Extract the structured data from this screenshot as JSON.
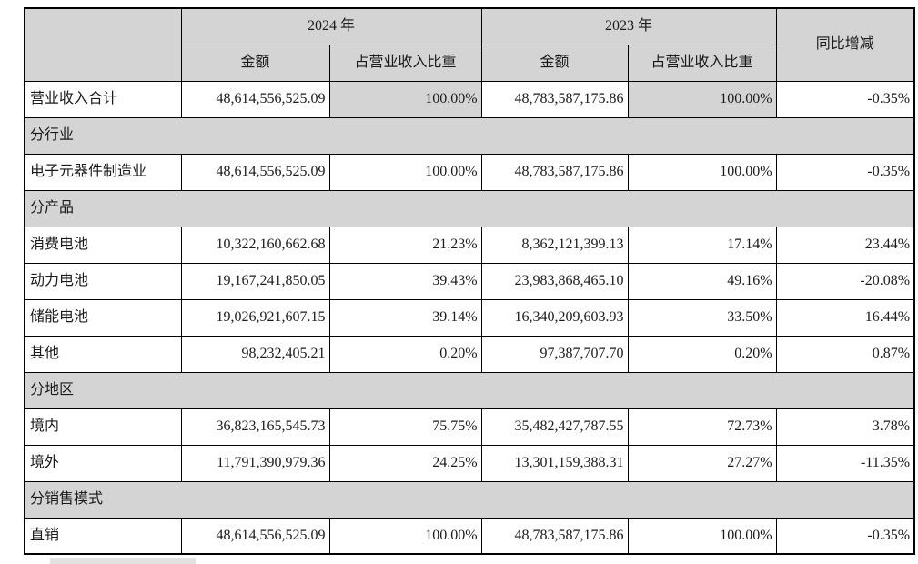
{
  "table": {
    "header": {
      "year_2024": "2024 年",
      "year_2023": "2023 年",
      "amount": "金额",
      "share": "占营业收入比重",
      "yoy": "同比增减"
    },
    "rows": [
      {
        "type": "data",
        "label": "营业收入合计",
        "a2024": "48,614,556,525.09",
        "s2024": "100.00%",
        "a2023": "48,783,587,175.86",
        "s2023": "100.00%",
        "yoy": "-0.35%",
        "shade_share": true
      },
      {
        "type": "section",
        "label": "分行业"
      },
      {
        "type": "data",
        "label": "电子元器件制造业",
        "a2024": "48,614,556,525.09",
        "s2024": "100.00%",
        "a2023": "48,783,587,175.86",
        "s2023": "100.00%",
        "yoy": "-0.35%",
        "shade_share": false
      },
      {
        "type": "section",
        "label": "分产品"
      },
      {
        "type": "data",
        "label": "消费电池",
        "a2024": "10,322,160,662.68",
        "s2024": "21.23%",
        "a2023": "8,362,121,399.13",
        "s2023": "17.14%",
        "yoy": "23.44%",
        "shade_share": false
      },
      {
        "type": "data",
        "label": "动力电池",
        "a2024": "19,167,241,850.05",
        "s2024": "39.43%",
        "a2023": "23,983,868,465.10",
        "s2023": "49.16%",
        "yoy": "-20.08%",
        "shade_share": false
      },
      {
        "type": "data",
        "label": "储能电池",
        "a2024": "19,026,921,607.15",
        "s2024": "39.14%",
        "a2023": "16,340,209,603.93",
        "s2023": "33.50%",
        "yoy": "16.44%",
        "shade_share": false
      },
      {
        "type": "data",
        "label": "其他",
        "a2024": "98,232,405.21",
        "s2024": "0.20%",
        "a2023": "97,387,707.70",
        "s2023": "0.20%",
        "yoy": "0.87%",
        "shade_share": false
      },
      {
        "type": "section",
        "label": "分地区"
      },
      {
        "type": "data",
        "label": "境内",
        "a2024": "36,823,165,545.73",
        "s2024": "75.75%",
        "a2023": "35,482,427,787.55",
        "s2023": "72.73%",
        "yoy": "3.78%",
        "shade_share": false
      },
      {
        "type": "data",
        "label": "境外",
        "a2024": "11,791,390,979.36",
        "s2024": "24.25%",
        "a2023": "13,301,159,388.31",
        "s2023": "27.27%",
        "yoy": "-11.35%",
        "shade_share": false
      },
      {
        "type": "section",
        "label": "分销售模式"
      },
      {
        "type": "data",
        "label": "直销",
        "a2024": "48,614,556,525.09",
        "s2024": "100.00%",
        "a2023": "48,783,587,175.86",
        "s2023": "100.00%",
        "yoy": "-0.35%",
        "shade_share": false
      }
    ],
    "colors": {
      "header_bg": "#d4d4d4",
      "section_bg": "#d4d4d4",
      "shaded_cell_bg": "#d4d4d4",
      "border": "#000000",
      "page_bg": "#ffffff"
    }
  }
}
